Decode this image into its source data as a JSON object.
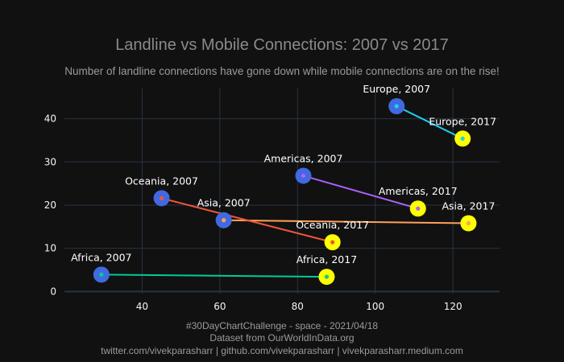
{
  "chart_data": {
    "type": "scatter",
    "title": "Landline vs Mobile Connections: 2007 vs 2017",
    "subtitle": "Number of landline connections have gone down while mobile connections are on the rise!",
    "xlim": [
      20,
      132
    ],
    "ylim": [
      -0.5,
      47
    ],
    "x_ticks": [
      40,
      60,
      80,
      100,
      120
    ],
    "y_ticks": [
      0,
      10,
      20,
      30,
      40
    ],
    "grid": true,
    "colors": {
      "background": "#111111",
      "grid": "#283442",
      "marker_2007": "#4169e1",
      "marker_2017": "#ffff00",
      "tick_text": "#f2f5fa",
      "title_text": "#8a8a8a"
    },
    "pairs": [
      {
        "color": "#00cc96",
        "start": {
          "label": "Africa, 2007",
          "x": 29.5,
          "y": 3.9
        },
        "end": {
          "label": "Africa, 2017",
          "x": 87.5,
          "y": 3.4
        }
      },
      {
        "color": "#ab63fa",
        "start": {
          "label": "Americas, 2007",
          "x": 81.5,
          "y": 26.8
        },
        "end": {
          "label": "Americas, 2017",
          "x": 111,
          "y": 19.2
        }
      },
      {
        "color": "#ffa15a",
        "start": {
          "label": "Asia, 2007",
          "x": 61,
          "y": 16.5
        },
        "end": {
          "label": "Asia, 2017",
          "x": 124,
          "y": 15.8
        }
      },
      {
        "color": "#19d3f3",
        "start": {
          "label": "Europe, 2007",
          "x": 105.5,
          "y": 42.9
        },
        "end": {
          "label": "Europe, 2017",
          "x": 122.5,
          "y": 35.4
        }
      },
      {
        "color": "#ef553b",
        "start": {
          "label": "Oceania, 2007",
          "x": 45,
          "y": 21.6
        },
        "end": {
          "label": "Oceania, 2017",
          "x": 89,
          "y": 11.4
        }
      }
    ]
  },
  "caption": {
    "line1": "#30DayChartChallenge - space - 2021/04/18",
    "line2": "Dataset from OurWorldInData.org",
    "line3": "twitter.com/vivekparasharr | github.com/vivekparasharr | vivekparasharr.medium.com"
  }
}
